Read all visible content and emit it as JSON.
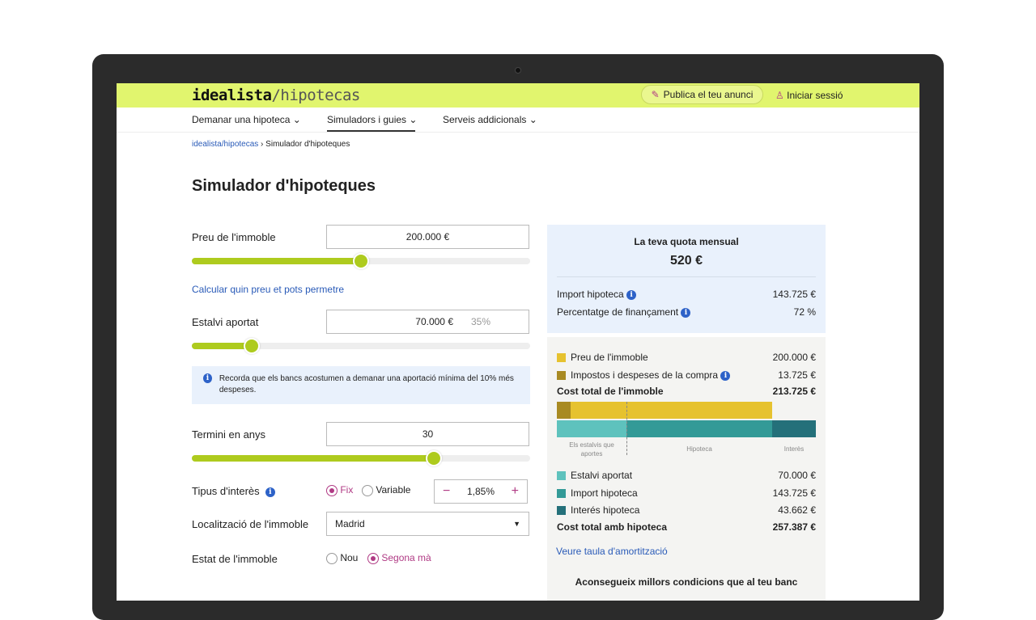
{
  "header": {
    "logo_main": "idealista",
    "logo_sub": "/hipotecas",
    "publish": "Publica el teu anunci",
    "login": "Iniciar sessió"
  },
  "nav": [
    {
      "label": "Demanar una hipoteca"
    },
    {
      "label": "Simuladors i guies",
      "active": true
    },
    {
      "label": "Serveis addicionals"
    }
  ],
  "breadcrumb": {
    "home": "idealista/hipotecas",
    "current": "Simulador d'hipoteques"
  },
  "title": "Simulador d'hipoteques",
  "form": {
    "price": {
      "label": "Preu de l'immoble",
      "value": "200.000 €",
      "slider_fraction": 0.5
    },
    "calc_link": "Calcular quin preu et pots permetre",
    "savings": {
      "label": "Estalvi aportat",
      "value": "70.000 €",
      "percent": "35%",
      "slider_fraction": 0.18
    },
    "notice": "Recorda que els bancs acostumen a demanar una aportació mínima del 10% més despeses.",
    "term": {
      "label": "Termini en anys",
      "value": "30",
      "slider_fraction": 0.71
    },
    "interest": {
      "label": "Tipus d'interès",
      "fixed": "Fix",
      "variable": "Variable",
      "selected": "Fix",
      "rate": "1,85%",
      "minus": "−",
      "plus": "+"
    },
    "location": {
      "label": "Localització de l'immoble",
      "value": "Madrid"
    },
    "state": {
      "label": "Estat de l'immoble",
      "new": "Nou",
      "second": "Segona mà",
      "selected": "Segona mà"
    }
  },
  "summary": {
    "title": "La teva quota mensual",
    "monthly": "520 €",
    "loan_label": "Import hipoteca",
    "loan": "143.725 €",
    "financing_label": "Percentatge de finançament",
    "financing": "72 %"
  },
  "breakdown": {
    "price_label": "Preu de l'immoble",
    "price": "200.000 €",
    "taxes_label": "Impostos i despeses de la compra",
    "taxes": "13.725 €",
    "total_label": "Cost total de l'immoble",
    "total": "213.725 €",
    "bar_labels": {
      "savings": "Els estalvis que aportes",
      "mortgage": "Hipoteca",
      "interest": "Interès"
    },
    "savings_label": "Estalvi aportat",
    "savings": "70.000 €",
    "loan_label": "Import hipoteca",
    "loan": "143.725 €",
    "interest_label": "Interés hipoteca",
    "interest": "43.662 €",
    "grand_label": "Cost total amb hipoteca",
    "grand": "257.387 €",
    "amort_link": "Veure taula d'amortització",
    "promo": "Aconsegueix millors condicions que al teu banc"
  },
  "colors": {
    "accent": "#aecb1e",
    "header": "#e1f56e",
    "price": "#e6c22f",
    "taxes": "#a88a22",
    "savings": "#5ec2bd",
    "loan": "#339a97",
    "interest": "#24707a",
    "link": "#2a5bb8",
    "radio": "#b03a84"
  }
}
